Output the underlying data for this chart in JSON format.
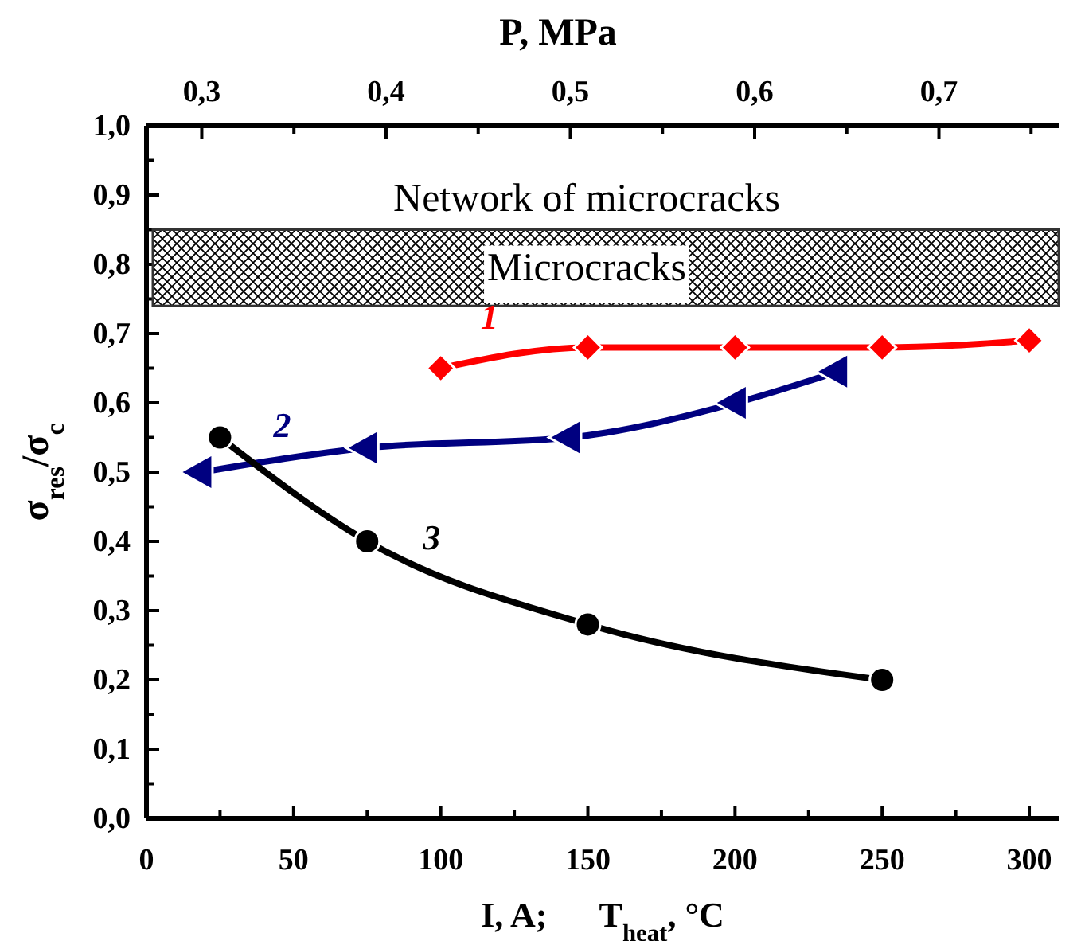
{
  "chart_data": {
    "type": "line",
    "xlabel": "I, A;      T$_{heat}$, °C",
    "x2label": "P, MPa",
    "ylabel": "σ$_{res}$/σ$_{c}$",
    "xlim": [
      0,
      310
    ],
    "xticks": [
      0,
      {
        "value": 25,
        "label": null
      },
      50,
      {
        "value": 75,
        "label": null
      },
      100,
      {
        "value": 125,
        "label": null
      },
      150,
      {
        "value": 175,
        "label": null
      },
      200,
      {
        "value": 225,
        "label": null
      },
      250,
      {
        "value": 275,
        "label": null
      },
      300
    ],
    "x2lim": [
      0.27,
      0.765
    ],
    "x2ticks": [
      {
        "value": 0.3,
        "label": "0,3"
      },
      {
        "value": 0.35,
        "label": null
      },
      {
        "value": 0.4,
        "label": "0,4"
      },
      {
        "value": 0.45,
        "label": null
      },
      {
        "value": 0.5,
        "label": "0,5"
      },
      {
        "value": 0.55,
        "label": null
      },
      {
        "value": 0.6,
        "label": "0,6"
      },
      {
        "value": 0.65,
        "label": null
      },
      {
        "value": 0.7,
        "label": "0,7"
      },
      {
        "value": 0.75,
        "label": null
      }
    ],
    "ylim": [
      0,
      1
    ],
    "yticks": [
      {
        "value": 0,
        "label": "0,0"
      },
      {
        "value": 0.05,
        "label": null
      },
      {
        "value": 0.1,
        "label": "0,1"
      },
      {
        "value": 0.15,
        "label": null
      },
      {
        "value": 0.2,
        "label": "0,2"
      },
      {
        "value": 0.25,
        "label": null
      },
      {
        "value": 0.3,
        "label": "0,3"
      },
      {
        "value": 0.35,
        "label": null
      },
      {
        "value": 0.4,
        "label": "0,4"
      },
      {
        "value": 0.45,
        "label": null
      },
      {
        "value": 0.5,
        "label": "0,5"
      },
      {
        "value": 0.55,
        "label": null
      },
      {
        "value": 0.6,
        "label": "0,6"
      },
      {
        "value": 0.65,
        "label": null
      },
      {
        "value": 0.7,
        "label": "0,7"
      },
      {
        "value": 0.75,
        "label": null
      },
      {
        "value": 0.8,
        "label": "0,8"
      },
      {
        "value": 0.85,
        "label": null
      },
      {
        "value": 0.9,
        "label": "0,9"
      },
      {
        "value": 0.95,
        "label": null
      },
      {
        "value": 1,
        "label": "1,0"
      }
    ],
    "series": [
      {
        "name": "1",
        "color": "#ff0000",
        "marker": "diamond",
        "x": [
          100,
          150,
          200,
          250,
          300
        ],
        "values": [
          0.65,
          0.68,
          0.68,
          0.68,
          0.69
        ]
      },
      {
        "name": "2",
        "color": "#000080",
        "marker": "triangle",
        "axis": "x2",
        "x": [
          0.3,
          0.39,
          0.5,
          0.59,
          0.645
        ],
        "values": [
          0.5,
          0.535,
          0.55,
          0.6,
          0.645
        ]
      },
      {
        "name": "3",
        "color": "#000000",
        "marker": "circle",
        "x": [
          25,
          75,
          150,
          250
        ],
        "values": [
          0.55,
          0.4,
          0.28,
          0.2
        ]
      }
    ],
    "bands": [
      {
        "axis": "y",
        "from": 0.74,
        "to": 0.85,
        "label": "Microcracks"
      }
    ],
    "annotations": [
      "Network of microcracks"
    ]
  }
}
